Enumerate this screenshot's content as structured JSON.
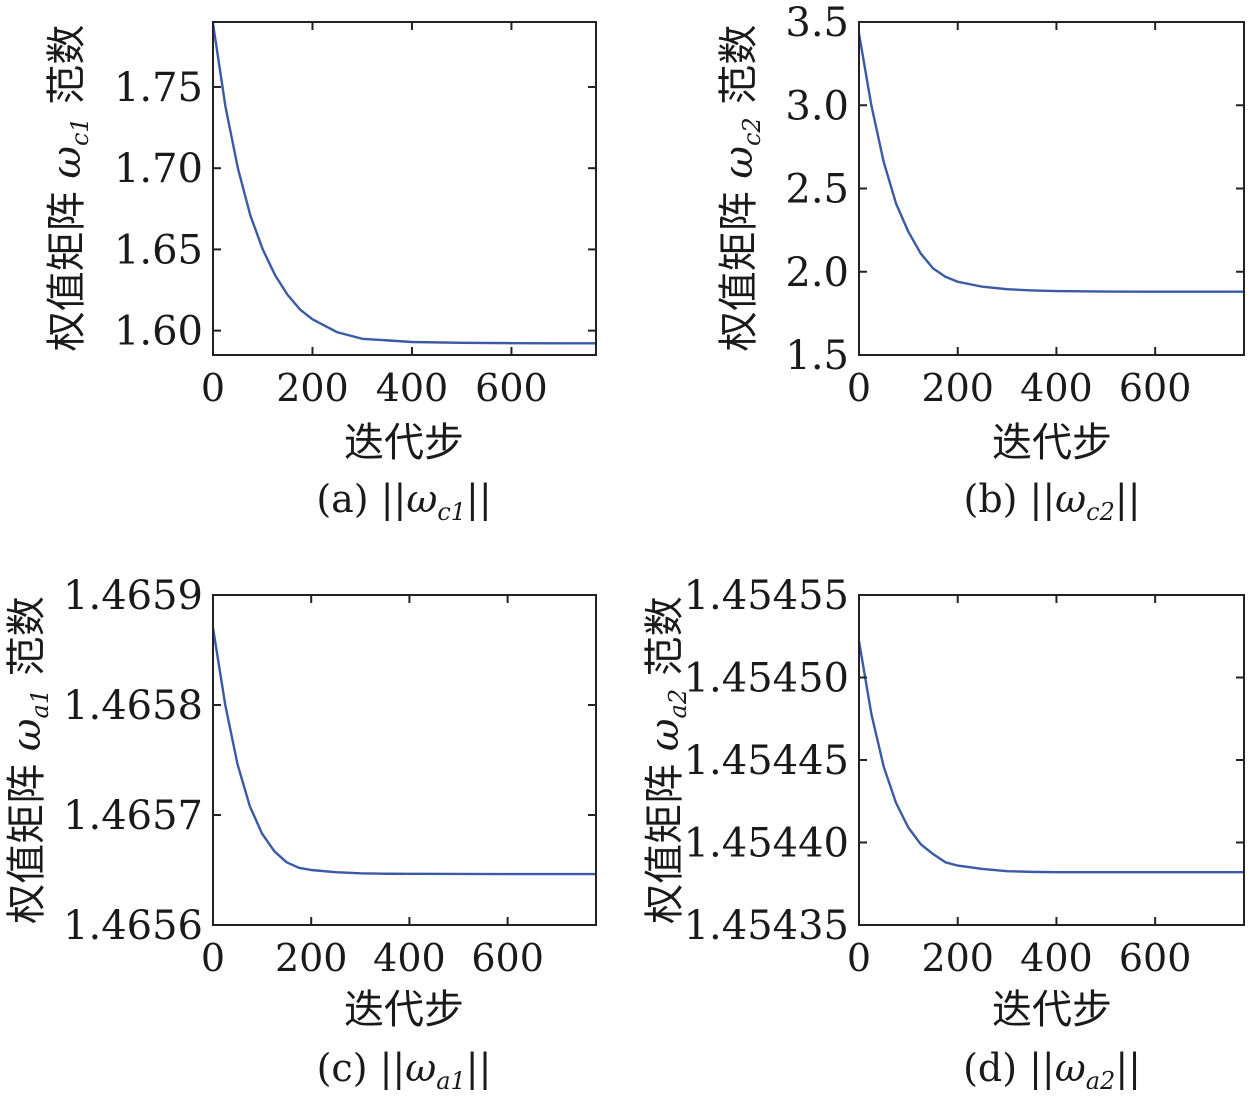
{
  "style": {
    "line_color": "#3a5aa6",
    "axis_color": "#222222",
    "background": "#ffffff"
  },
  "chart_data": [
    {
      "type": "line",
      "id": "a",
      "caption": {
        "prefix": "(a) ||",
        "omega": "ω",
        "sub": "c1",
        "suffix": "||"
      },
      "xlabel": "迭代步",
      "ylabel": {
        "prefix": "权值矩阵 ",
        "omega": "ω",
        "sub": "c1",
        "suffix": " 范数"
      },
      "xlim": [
        0,
        770
      ],
      "ylim": [
        1.585,
        1.79
      ],
      "xticks": [
        0,
        200,
        400,
        600
      ],
      "xtick_labels": [
        "0",
        "200",
        "400",
        "600"
      ],
      "yticks": [
        1.6,
        1.65,
        1.7,
        1.75
      ],
      "ytick_labels": [
        "1.60",
        "1.65",
        "1.70",
        "1.75"
      ],
      "grid": false,
      "series": [
        {
          "x": [
            0,
            25,
            50,
            75,
            100,
            125,
            150,
            175,
            200,
            250,
            300,
            350,
            400,
            500,
            600,
            700,
            770
          ],
          "y": [
            1.789,
            1.738,
            1.7,
            1.671,
            1.65,
            1.634,
            1.622,
            1.613,
            1.607,
            1.599,
            1.595,
            1.594,
            1.593,
            1.5925,
            1.5923,
            1.5922,
            1.5922
          ]
        }
      ]
    },
    {
      "type": "line",
      "id": "b",
      "caption": {
        "prefix": "(b) ||",
        "omega": "ω",
        "sub": "c2",
        "suffix": "||"
      },
      "xlabel": "迭代步",
      "ylabel": {
        "prefix": "权值矩阵 ",
        "omega": "ω",
        "sub": "c2",
        "suffix": " 范数"
      },
      "xlim": [
        0,
        780
      ],
      "ylim": [
        1.5,
        3.5
      ],
      "xticks": [
        0,
        200,
        400,
        600
      ],
      "xtick_labels": [
        "0",
        "200",
        "400",
        "600"
      ],
      "yticks": [
        1.5,
        2.0,
        2.5,
        3.0,
        3.5
      ],
      "ytick_labels": [
        "1.5",
        "2.0",
        "2.5",
        "3.0",
        "3.5"
      ],
      "grid": false,
      "series": [
        {
          "x": [
            0,
            25,
            50,
            75,
            100,
            125,
            150,
            175,
            200,
            250,
            300,
            350,
            400,
            500,
            600,
            700,
            780
          ],
          "y": [
            3.43,
            3.0,
            2.66,
            2.41,
            2.24,
            2.11,
            2.02,
            1.97,
            1.94,
            1.91,
            1.895,
            1.888,
            1.884,
            1.881,
            1.88,
            1.88,
            1.88
          ]
        }
      ]
    },
    {
      "type": "line",
      "id": "c",
      "caption": {
        "prefix": "(c) ||",
        "omega": "ω",
        "sub": "a1",
        "suffix": "||"
      },
      "xlabel": "迭代步",
      "ylabel": {
        "prefix": "权值矩阵 ",
        "omega": "ω",
        "sub": "a1",
        "suffix": " 范数"
      },
      "xlim": [
        0,
        780
      ],
      "ylim": [
        1.4656,
        1.4659
      ],
      "xticks": [
        0,
        200,
        400,
        600
      ],
      "xtick_labels": [
        "0",
        "200",
        "400",
        "600"
      ],
      "yticks": [
        1.4656,
        1.4657,
        1.4658,
        1.4659
      ],
      "ytick_labels": [
        "1.4656",
        "1.4657",
        "1.4658",
        "1.4659"
      ],
      "grid": false,
      "series": [
        {
          "x": [
            0,
            25,
            50,
            75,
            100,
            125,
            150,
            175,
            200,
            250,
            300,
            350,
            400,
            500,
            600,
            700,
            780
          ],
          "y": [
            1.46587,
            1.4658,
            1.465746,
            1.465708,
            1.465683,
            1.465667,
            1.465657,
            1.465652,
            1.46565,
            1.465648,
            1.465647,
            1.4656466,
            1.4656465,
            1.4656464,
            1.4656463,
            1.4656463,
            1.4656463
          ]
        }
      ]
    },
    {
      "type": "line",
      "id": "d",
      "caption": {
        "prefix": "(d) ||",
        "omega": "ω",
        "sub": "a2",
        "suffix": "||"
      },
      "xlabel": "迭代步",
      "ylabel": {
        "prefix": "权值矩阵 ",
        "omega": "ω",
        "sub": "a2",
        "suffix": " 范数"
      },
      "xlim": [
        0,
        780
      ],
      "ylim": [
        1.45435,
        1.45455
      ],
      "xticks": [
        0,
        200,
        400,
        600
      ],
      "xtick_labels": [
        "0",
        "200",
        "400",
        "600"
      ],
      "yticks": [
        1.45435,
        1.4544,
        1.45445,
        1.4545,
        1.45455
      ],
      "ytick_labels": [
        "1.45435",
        "1.45440",
        "1.45445",
        "1.45450",
        "1.45455"
      ],
      "grid": false,
      "series": [
        {
          "x": [
            0,
            25,
            50,
            75,
            100,
            125,
            150,
            175,
            200,
            250,
            300,
            350,
            400,
            500,
            600,
            700,
            780
          ],
          "y": [
            1.454522,
            1.454478,
            1.454446,
            1.454424,
            1.454409,
            1.454399,
            1.454393,
            1.454388,
            1.454386,
            1.454384,
            1.4543826,
            1.4543822,
            1.454382,
            1.454382,
            1.454382,
            1.454382,
            1.454382
          ]
        }
      ]
    }
  ]
}
